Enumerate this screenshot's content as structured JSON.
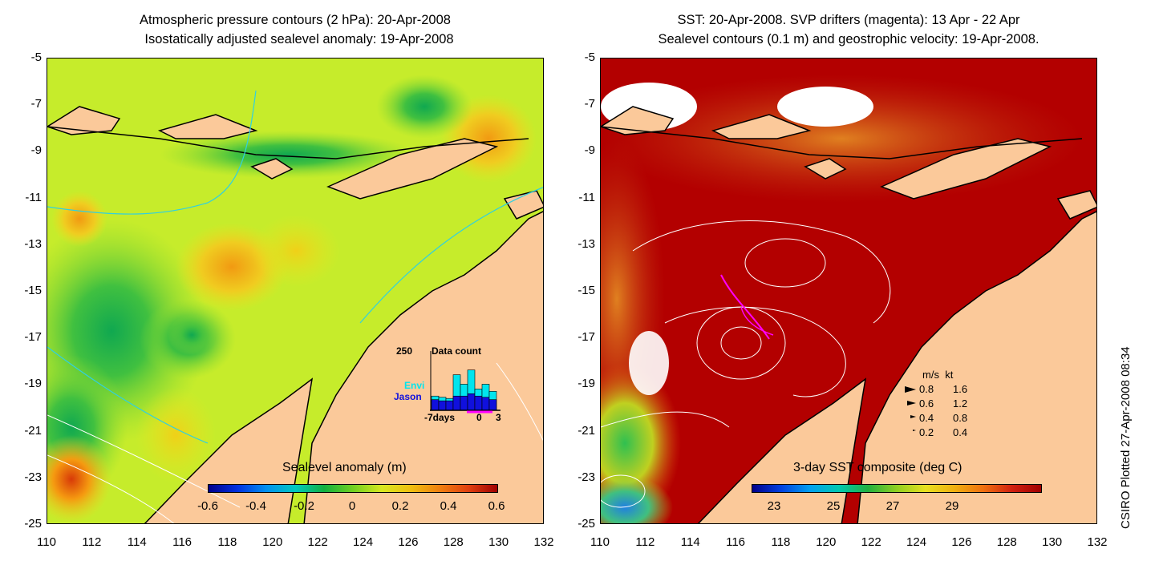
{
  "left_panel": {
    "title_line1": "Atmospheric pressure contours (2 hPa): 20-Apr-2008",
    "title_line2": "Isostatically adjusted sealevel anomaly: 19-Apr-2008",
    "colorbar": {
      "label": "Sealevel anomaly (m)",
      "ticks": [
        "-0.6",
        "-0.4",
        "-0.2",
        "0",
        "0.2",
        "0.4",
        "0.6"
      ]
    },
    "inset": {
      "count_label": "250",
      "title": "Data count",
      "envi_label": "Envi",
      "jason_label": "Jason",
      "xtick_left": "-7days",
      "xtick_mid": "0",
      "xtick_right": "3",
      "envi_values": [
        60,
        55,
        50,
        150,
        110,
        170,
        90,
        110,
        80
      ],
      "jason_values": [
        45,
        40,
        40,
        60,
        60,
        70,
        60,
        55,
        45
      ]
    }
  },
  "right_panel": {
    "title_line1": "SST: 20-Apr-2008. SVP drifters (magenta): 13 Apr - 22 Apr",
    "title_line2": "Sealevel contours (0.1 m) and geostrophic velocity: 19-Apr-2008.",
    "colorbar": {
      "label": "3-day SST composite (deg C)",
      "ticks": [
        "23",
        "25",
        "27",
        "29"
      ]
    },
    "velocity_legend": {
      "header_ms": "m/s",
      "header_kt": "kt",
      "rows": [
        {
          "ms": "0.8",
          "kt": "1.6"
        },
        {
          "ms": "0.6",
          "kt": "1.2"
        },
        {
          "ms": "0.4",
          "kt": "0.8"
        },
        {
          "ms": "0.2",
          "kt": "0.4"
        }
      ]
    }
  },
  "axes": {
    "y_ticks": [
      "-5",
      "-7",
      "-9",
      "-11",
      "-13",
      "-15",
      "-17",
      "-19",
      "-21",
      "-23",
      "-25"
    ],
    "x_ticks": [
      "110",
      "112",
      "114",
      "116",
      "118",
      "120",
      "122",
      "124",
      "126",
      "128",
      "130",
      "132"
    ],
    "lon_range": [
      110,
      132
    ],
    "lat_range": [
      -25,
      -5
    ]
  },
  "credit": "CSIRO Plotted 27-Apr-2008 08:34",
  "colors": {
    "land": "#fbc99a",
    "sla_background": "#c6ec2b",
    "sst_background": "#b30000",
    "envi": "#00e5ee",
    "jason": "#1010dd",
    "drifter": "#ff00ff"
  }
}
